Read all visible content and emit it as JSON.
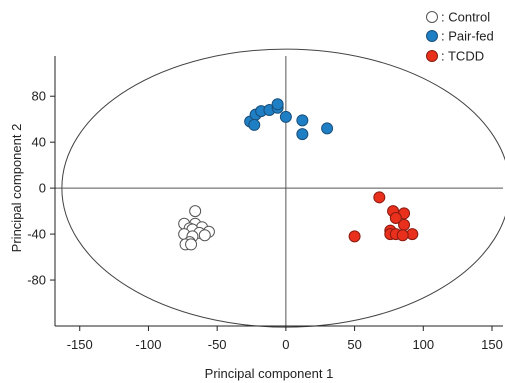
{
  "chart_data": {
    "type": "scatter",
    "xlabel": "Principal component 1",
    "ylabel": "Principal component 2",
    "xlim": [
      -168,
      158
    ],
    "ylim": [
      -120,
      115
    ],
    "x_ticks": [
      -150,
      -100,
      -50,
      0,
      50,
      100,
      150
    ],
    "y_ticks": [
      80,
      40,
      0,
      -40,
      -80
    ],
    "x_tick_labels": [
      "-150",
      "-100",
      "-50",
      "0",
      "50",
      "100",
      "150"
    ],
    "y_tick_labels": [
      "80",
      "40",
      "0",
      "-40",
      "-80"
    ],
    "grid": false,
    "legend_position": "top-right",
    "confidence_ellipse": {
      "cx": 0,
      "cy": 0,
      "rx": 163,
      "ry": 121
    },
    "series": [
      {
        "name": ": Control",
        "fill": "#ffffff",
        "stroke": "#555555",
        "points": [
          [
            -66,
            -20
          ],
          [
            -74,
            -31
          ],
          [
            -66,
            -31
          ],
          [
            -61,
            -34
          ],
          [
            -70,
            -35
          ],
          [
            -68,
            -36
          ],
          [
            -56,
            -38
          ],
          [
            -63,
            -39
          ],
          [
            -74,
            -40
          ],
          [
            -59,
            -41
          ],
          [
            -68,
            -42
          ],
          [
            -70,
            -47
          ],
          [
            -73,
            -49
          ],
          [
            -69,
            -49
          ]
        ]
      },
      {
        "name": ": Pair-fed",
        "fill": "#1f7fc4",
        "stroke": "#1a4f7a",
        "points": [
          [
            -26,
            58
          ],
          [
            -22,
            64
          ],
          [
            -18,
            67
          ],
          [
            -12,
            68
          ],
          [
            -6,
            70
          ],
          [
            -6,
            73
          ],
          [
            -23,
            55
          ],
          [
            0,
            62
          ],
          [
            12,
            59
          ],
          [
            30,
            52
          ],
          [
            12,
            47
          ]
        ]
      },
      {
        "name": ": TCDD",
        "fill": "#e8301c",
        "stroke": "#8a1a10",
        "points": [
          [
            68,
            -8
          ],
          [
            78,
            -20
          ],
          [
            86,
            -22
          ],
          [
            80,
            -26
          ],
          [
            86,
            -32
          ],
          [
            76,
            -37
          ],
          [
            92,
            -40
          ],
          [
            76,
            -40
          ],
          [
            80,
            -40
          ],
          [
            85,
            -41
          ],
          [
            50,
            -42
          ]
        ]
      }
    ]
  }
}
